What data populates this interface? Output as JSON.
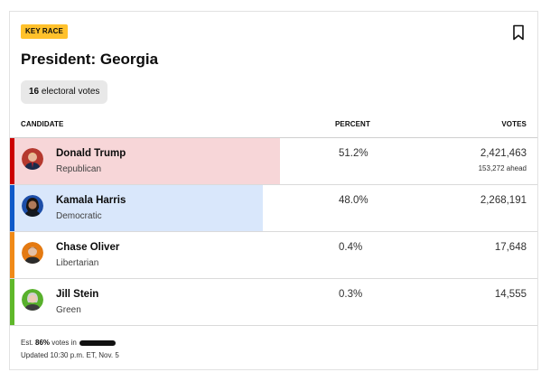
{
  "badge": "KEY RACE",
  "title": "President: Georgia",
  "electoral": {
    "count": "16",
    "label": "electoral votes"
  },
  "headers": {
    "candidate": "CANDIDATE",
    "percent": "PERCENT",
    "votes": "VOTES"
  },
  "candidates": [
    {
      "name": "Donald Trump",
      "party": "Republican",
      "percent": "51.2%",
      "votes": "2,421,463",
      "ahead": "153,272 ahead",
      "share": 51.2,
      "color": "#cc0000",
      "fill": "#f7d6d8",
      "avatar_bg": "#b5392f"
    },
    {
      "name": "Kamala Harris",
      "party": "Democratic",
      "percent": "48.0%",
      "votes": "2,268,191",
      "ahead": "",
      "share": 48.0,
      "color": "#0e59c9",
      "fill": "#d9e7fb",
      "avatar_bg": "#1d4ea8"
    },
    {
      "name": "Chase Oliver",
      "party": "Libertarian",
      "percent": "0.4%",
      "votes": "17,648",
      "ahead": "",
      "share": 0.4,
      "color": "#f08a18",
      "fill": "",
      "avatar_bg": "#e47a12"
    },
    {
      "name": "Jill Stein",
      "party": "Green",
      "percent": "0.3%",
      "votes": "14,555",
      "ahead": "",
      "share": 0.3,
      "color": "#5fb82a",
      "fill": "",
      "avatar_bg": "#58b02c"
    }
  ],
  "footer": {
    "est_prefix": "Est.",
    "est_pct": "86%",
    "est_suffix": "votes in",
    "updated": "Updated 10:30 p.m. ET, Nov. 5"
  },
  "icons": {
    "bookmark": "bookmark-icon",
    "avatar": "candidate-photo"
  }
}
